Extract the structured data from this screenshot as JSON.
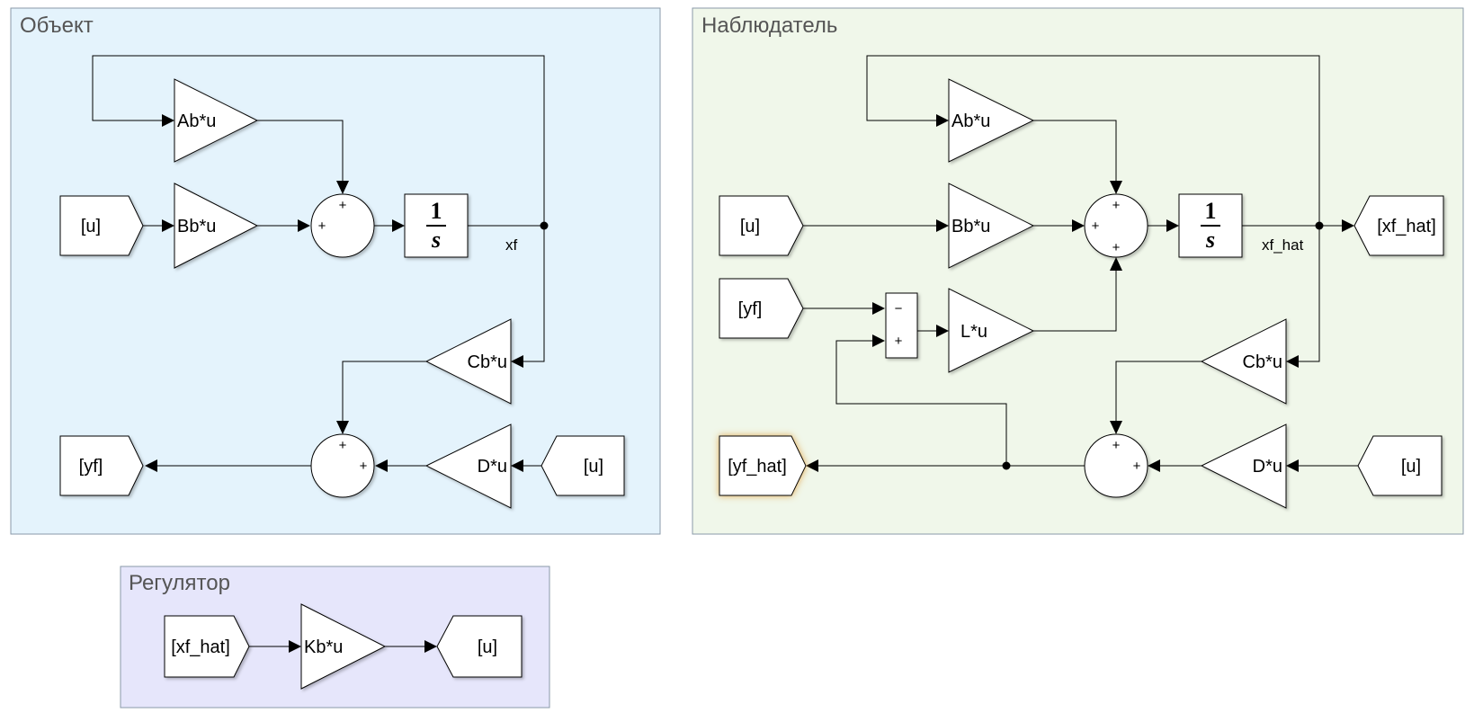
{
  "areas": {
    "object": {
      "title": "Объект",
      "color": "#e4f3fc"
    },
    "observer": {
      "title": "Наблюдатель",
      "color": "#f0f7ea"
    },
    "regulator": {
      "title": "Регулятор",
      "color": "#e6e6fb"
    }
  },
  "object": {
    "gain_a": "Ab*u",
    "gain_b": "Bb*u",
    "gain_c": "Cb*u",
    "gain_d": "D*u",
    "from_u_1": "[u]",
    "from_u_2": "[u]",
    "goto_yf": "[yf]",
    "signal_xf": "xf",
    "integrator_num": "1",
    "integrator_den": "s",
    "sum1_signs": [
      "+",
      "+"
    ],
    "sum2_signs": [
      "+",
      "+"
    ]
  },
  "observer": {
    "gain_a": "Ab*u",
    "gain_b": "Bb*u",
    "gain_c": "Cb*u",
    "gain_d": "D*u",
    "gain_l": "L*u",
    "from_u_1": "[u]",
    "from_u_2": "[u]",
    "from_yf": "[yf]",
    "goto_xf_hat": "[xf_hat]",
    "goto_yf_hat": "[yf_hat]",
    "signal_xf_hat": "xf_hat",
    "integrator_num": "1",
    "integrator_den": "s",
    "sum1_signs": [
      "+",
      "+",
      "+"
    ],
    "sum_err_signs": [
      "−",
      "+"
    ],
    "sum2_signs": [
      "+",
      "+"
    ]
  },
  "regulator": {
    "from_xf_hat": "[xf_hat]",
    "gain_k": "Kb*u",
    "goto_u": "[u]"
  }
}
